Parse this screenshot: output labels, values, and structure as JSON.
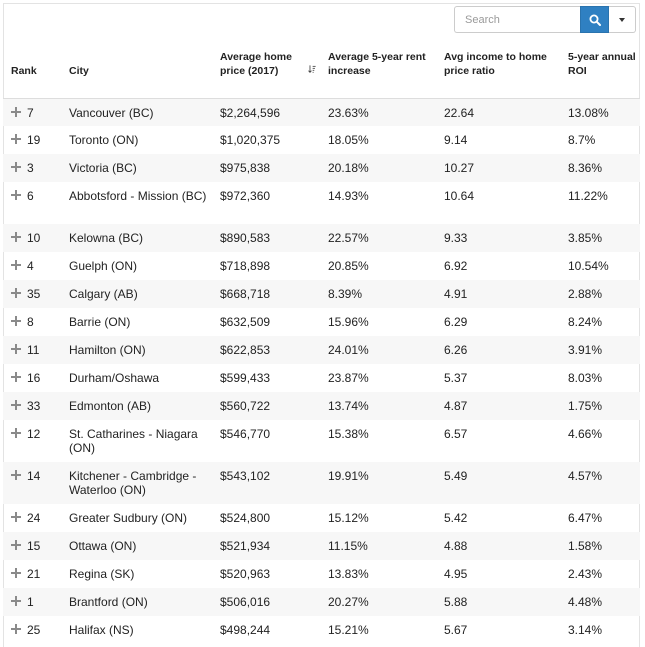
{
  "search": {
    "placeholder": "Search",
    "value": ""
  },
  "icons": {
    "search": "search-icon",
    "dropdown": "caret-down-icon",
    "expand": "plus-icon",
    "sort": "sort-descending-icon"
  },
  "colors": {
    "accent": "#2f80c2",
    "stripe": "#f7f7f7",
    "border": "#dddddd"
  },
  "columns": [
    "Rank",
    "City",
    "Average home price (2017)",
    "Average 5-year rent increase",
    "Avg income to home price ratio",
    "5-year annual ROI"
  ],
  "rows": [
    {
      "rank": "7",
      "city": "Vancouver (BC)",
      "price": "$2,264,596",
      "rent": "23.63%",
      "ratio": "22.64",
      "roi": "13.08%"
    },
    {
      "rank": "19",
      "city": "Toronto (ON)",
      "price": "$1,020,375",
      "rent": "18.05%",
      "ratio": "9.14",
      "roi": "8.7%"
    },
    {
      "rank": "3",
      "city": "Victoria (BC)",
      "price": "$975,838",
      "rent": "20.18%",
      "ratio": "10.27",
      "roi": "8.36%"
    },
    {
      "rank": "6",
      "city": "Abbotsford - Mission (BC)",
      "price": "$972,360",
      "rent": "14.93%",
      "ratio": "10.64",
      "roi": "11.22%"
    },
    {
      "rank": "10",
      "city": "Kelowna (BC)",
      "price": "$890,583",
      "rent": "22.57%",
      "ratio": "9.33",
      "roi": "3.85%"
    },
    {
      "rank": "4",
      "city": "Guelph (ON)",
      "price": "$718,898",
      "rent": "20.85%",
      "ratio": "6.92",
      "roi": "10.54%"
    },
    {
      "rank": "35",
      "city": "Calgary (AB)",
      "price": "$668,718",
      "rent": "8.39%",
      "ratio": "4.91",
      "roi": "2.88%"
    },
    {
      "rank": "8",
      "city": "Barrie (ON)",
      "price": "$632,509",
      "rent": "15.96%",
      "ratio": "6.29",
      "roi": "8.24%"
    },
    {
      "rank": "11",
      "city": "Hamilton (ON)",
      "price": "$622,853",
      "rent": "24.01%",
      "ratio": "6.26",
      "roi": "3.91%"
    },
    {
      "rank": "16",
      "city": "Durham/Oshawa",
      "price": "$599,433",
      "rent": "23.87%",
      "ratio": "5.37",
      "roi": "8.03%"
    },
    {
      "rank": "33",
      "city": "Edmonton (AB)",
      "price": "$560,722",
      "rent": "13.74%",
      "ratio": "4.87",
      "roi": "1.75%"
    },
    {
      "rank": "12",
      "city": "St. Catharines - Niagara (ON)",
      "price": "$546,770",
      "rent": "15.38%",
      "ratio": "6.57",
      "roi": "4.66%"
    },
    {
      "rank": "14",
      "city": "Kitchener - Cambridge - Waterloo (ON)",
      "price": "$543,102",
      "rent": "19.91%",
      "ratio": "5.49",
      "roi": "4.57%"
    },
    {
      "rank": "24",
      "city": "Greater Sudbury (ON)",
      "price": "$524,800",
      "rent": "15.12%",
      "ratio": "5.42",
      "roi": "6.47%"
    },
    {
      "rank": "15",
      "city": "Ottawa (ON)",
      "price": "$521,934",
      "rent": "11.15%",
      "ratio": "4.88",
      "roi": "1.58%"
    },
    {
      "rank": "21",
      "city": "Regina (SK)",
      "price": "$520,963",
      "rent": "13.83%",
      "ratio": "4.95",
      "roi": "2.43%"
    },
    {
      "rank": "1",
      "city": "Brantford (ON)",
      "price": "$506,016",
      "rent": "20.27%",
      "ratio": "5.88",
      "roi": "4.48%"
    },
    {
      "rank": "25",
      "city": "Halifax (NS)",
      "price": "$498,244",
      "rent": "15.21%",
      "ratio": "5.67",
      "roi": "3.14%"
    }
  ]
}
